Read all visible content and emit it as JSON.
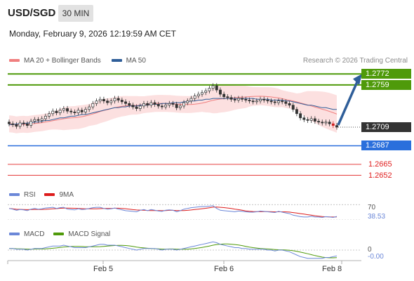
{
  "header": {
    "symbol": "USD/SGD",
    "timeframe": "30 MIN",
    "datetime": "Monday, February 9, 2026 12:19:59 AM CET",
    "credit": "Research © 2026 Trading Central"
  },
  "legend": {
    "main": [
      {
        "label": "MA 20 + Bollinger Bands",
        "color": "#f07f7f"
      },
      {
        "label": "MA 50",
        "color": "#2f5e99"
      }
    ],
    "rsi": [
      {
        "label": "RSI",
        "color": "#6b87d8"
      },
      {
        "label": "9MA",
        "color": "#dd1c1c"
      }
    ],
    "macd": [
      {
        "label": "MACD",
        "color": "#6b87d8"
      },
      {
        "label": "MACD Signal",
        "color": "#4f9a0a"
      }
    ]
  },
  "levels": {
    "target_high": {
      "label": "1.2772",
      "value": 1.2772,
      "color": "#4f9a0a"
    },
    "target_1": {
      "label": "1.2759",
      "value": 1.2759,
      "color": "#4f9a0a"
    },
    "last_price": {
      "label": "1.2709",
      "value": 1.2709,
      "color": "#333333"
    },
    "pivot": {
      "label": "1.2687",
      "value": 1.2687,
      "color": "#2a6fdc"
    },
    "support_1": {
      "label": "1.2665",
      "value": 1.2665,
      "color": "#e02020"
    },
    "support_2": {
      "label": "1.2652",
      "value": 1.2652,
      "color": "#e02020"
    }
  },
  "indicators": {
    "rsi_level_label": "70",
    "rsi_value_label": "38.53",
    "macd_zero_label": "0",
    "macd_value_label": "-0.00"
  },
  "x_axis": {
    "labels": [
      "Feb 5",
      "Feb 6",
      "Feb 8"
    ]
  },
  "chart_data": {
    "type": "candlestick",
    "y_range": [
      1.2645,
      1.2778
    ],
    "closes": [
      1.2713,
      1.2712,
      1.271,
      1.2714,
      1.2713,
      1.2711,
      1.2716,
      1.2718,
      1.2717,
      1.2719,
      1.2722,
      1.2725,
      1.2728,
      1.2726,
      1.2729,
      1.2731,
      1.2728,
      1.2727,
      1.2726,
      1.2729,
      1.2727,
      1.273,
      1.2733,
      1.2737,
      1.274,
      1.2742,
      1.274,
      1.2738,
      1.274,
      1.2743,
      1.2741,
      1.2739,
      1.2737,
      1.2735,
      1.2733,
      1.2731,
      1.2734,
      1.2737,
      1.2735,
      1.2738,
      1.2736,
      1.2734,
      1.2733,
      1.2735,
      1.2737,
      1.2736,
      1.2732,
      1.2734,
      1.2738,
      1.274,
      1.2743,
      1.2746,
      1.2748,
      1.275,
      1.2752,
      1.2755,
      1.2758,
      1.2753,
      1.2748,
      1.2745,
      1.2744,
      1.2742,
      1.2741,
      1.2743,
      1.2742,
      1.2741,
      1.274,
      1.2739,
      1.274,
      1.2742,
      1.2741,
      1.274,
      1.2739,
      1.2738,
      1.274,
      1.2739,
      1.2737,
      1.2735,
      1.273,
      1.2725,
      1.272,
      1.2718,
      1.2717,
      1.2719,
      1.2716,
      1.2715,
      1.2714,
      1.2715,
      1.2713,
      1.2711,
      1.2709
    ],
    "ma50": [
      1.2712,
      1.2712,
      1.2713,
      1.2713,
      1.2713,
      1.2714,
      1.2714,
      1.2715,
      1.2715,
      1.2716,
      1.2717,
      1.2717,
      1.2718,
      1.2719,
      1.272,
      1.272,
      1.2721,
      1.2722,
      1.2722,
      1.2723,
      1.2724,
      1.2724,
      1.2725,
      1.2726,
      1.2727,
      1.2728,
      1.2729,
      1.273,
      1.2731,
      1.2732,
      1.2732,
      1.2733,
      1.2733,
      1.2734,
      1.2734,
      1.2734,
      1.2735,
      1.2735,
      1.2735,
      1.2736,
      1.2736,
      1.2736,
      1.2737,
      1.2737,
      1.2737,
      1.2738,
      1.2738,
      1.2738,
      1.2739,
      1.2739,
      1.274,
      1.274,
      1.2741,
      1.2741,
      1.2742,
      1.2742,
      1.2743,
      1.2743,
      1.2743,
      1.2743,
      1.2743,
      1.2743,
      1.2743,
      1.2743,
      1.2743,
      1.2743,
      1.2743,
      1.2743,
      1.2742,
      1.2742,
      1.2742,
      1.2742,
      1.2741,
      1.2741,
      1.2741,
      1.2741,
      1.274,
      1.274,
      1.2739,
      1.2738,
      1.2737,
      1.2736,
      1.2735,
      1.2735,
      1.2734,
      1.2733,
      1.2732,
      1.2732,
      1.2731,
      1.273,
      1.273
    ],
    "rsi": [
      60,
      58,
      55,
      57,
      56,
      54,
      58,
      60,
      58,
      59,
      61,
      62,
      63,
      60,
      62,
      63,
      58,
      57,
      56,
      59,
      57,
      58,
      60,
      62,
      63,
      63,
      60,
      58,
      59,
      61,
      58,
      56,
      54,
      53,
      52,
      51,
      55,
      57,
      54,
      57,
      55,
      53,
      52,
      55,
      56,
      55,
      51,
      54,
      58,
      60,
      62,
      63,
      64,
      65,
      65,
      66,
      67,
      60,
      55,
      54,
      53,
      52,
      51,
      53,
      52,
      51,
      50,
      50,
      51,
      53,
      52,
      51,
      50,
      49,
      52,
      50,
      48,
      46,
      42,
      40,
      38,
      37,
      37,
      39,
      37,
      37,
      36,
      38,
      37,
      36,
      38.5
    ],
    "macd": [
      0.0002,
      0.0002,
      0.0001,
      0.0001,
      0.0001,
      0.0,
      0.0001,
      0.0002,
      0.0002,
      0.0002,
      0.0003,
      0.0004,
      0.0005,
      0.0005,
      0.0005,
      0.0006,
      0.0005,
      0.0004,
      0.0003,
      0.0003,
      0.0003,
      0.0003,
      0.0004,
      0.0005,
      0.0006,
      0.0007,
      0.0007,
      0.0006,
      0.0006,
      0.0006,
      0.0005,
      0.0004,
      0.0003,
      0.0002,
      0.0001,
      0.0,
      0.0001,
      0.0002,
      0.0002,
      0.0002,
      0.0002,
      0.0001,
      0.0,
      0.0001,
      0.0001,
      0.0001,
      0.0,
      0.0001,
      0.0002,
      0.0003,
      0.0004,
      0.0005,
      0.0006,
      0.0007,
      0.0008,
      0.0009,
      0.001,
      0.0009,
      0.0007,
      0.0006,
      0.0005,
      0.0004,
      0.0003,
      0.0003,
      0.0002,
      0.0002,
      0.0001,
      0.0001,
      0.0001,
      0.0001,
      0.0001,
      0.0,
      0.0,
      -0.0001,
      0.0,
      0.0,
      -0.0001,
      -0.0002,
      -0.0004,
      -0.0006,
      -0.0008,
      -0.0009,
      -0.001,
      -0.001,
      -0.001,
      -0.001,
      -0.001,
      -0.0009,
      -0.0009,
      -0.0008,
      -0.0007
    ]
  }
}
